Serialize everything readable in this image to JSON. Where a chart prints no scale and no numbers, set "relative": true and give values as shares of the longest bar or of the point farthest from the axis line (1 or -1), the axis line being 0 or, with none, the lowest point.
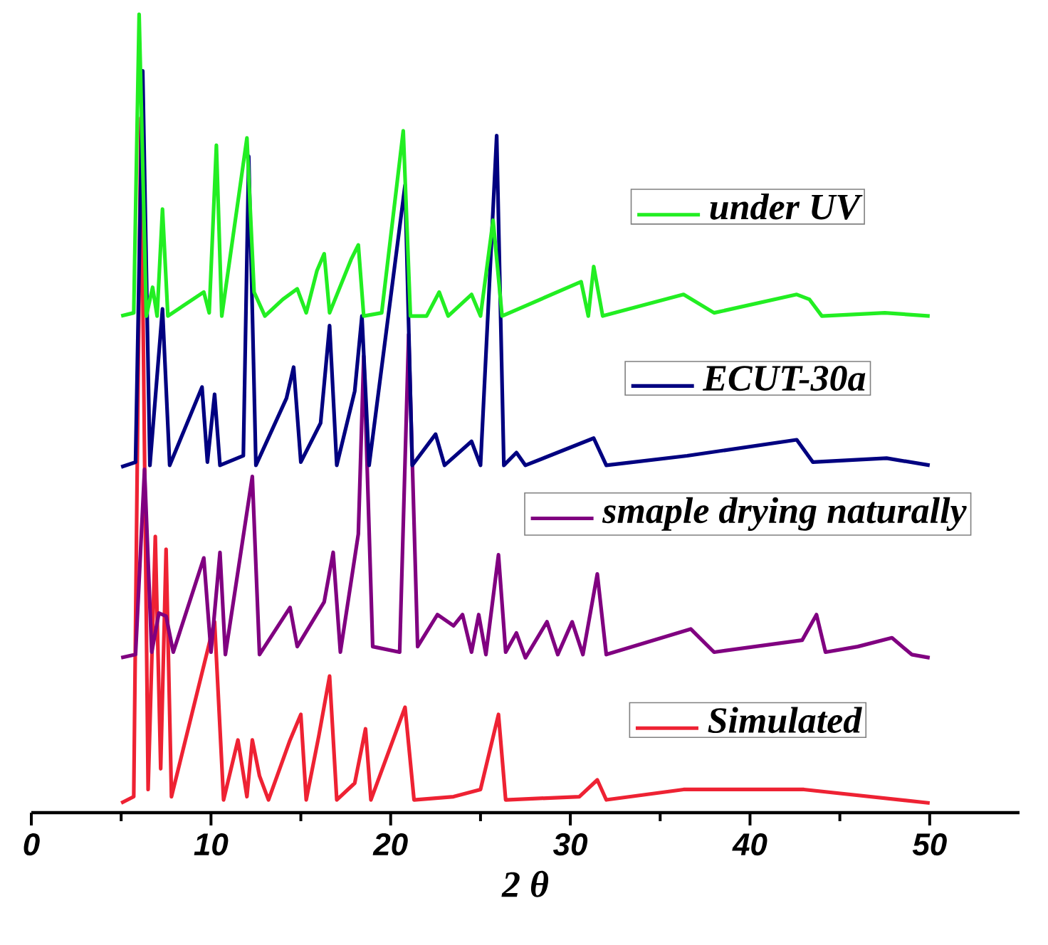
{
  "chart_data": {
    "type": "line",
    "relative": true,
    "xlabel": "2 *θ*",
    "xlim": [
      0,
      55
    ],
    "xticks": [
      0,
      10,
      20,
      30,
      40,
      50
    ],
    "legend": "right",
    "marker": "none",
    "line_style": "solid",
    "series": [
      {
        "name": "under UV",
        "color": "#22ee22",
        "x": [
          5,
          5.7,
          6.0,
          6.4,
          6.75,
          7.0,
          7.3,
          7.6,
          9.6,
          9.9,
          10.3,
          10.6,
          12.0,
          12.4,
          13,
          14.0,
          14.8,
          15.3,
          15.9,
          16.3,
          16.6,
          17.8,
          18.2,
          18.5,
          19.5,
          20.7,
          21.1,
          22.0,
          22.7,
          23.2,
          24.5,
          25,
          25.7,
          26.2,
          30.6,
          31.0,
          31.3,
          31.8,
          36.3,
          38,
          42.6,
          43.3,
          44,
          47.5,
          50
        ],
        "values": [
          0.622,
          0.626,
          1.0,
          0.622,
          0.658,
          0.622,
          0.756,
          0.622,
          0.652,
          0.626,
          0.836,
          0.622,
          0.845,
          0.652,
          0.622,
          0.643,
          0.656,
          0.626,
          0.679,
          0.7,
          0.626,
          0.693,
          0.711,
          0.622,
          0.626,
          0.854,
          0.622,
          0.622,
          0.652,
          0.622,
          0.649,
          0.622,
          0.742,
          0.622,
          0.665,
          0.622,
          0.684,
          0.622,
          0.649,
          0.626,
          0.649,
          0.643,
          0.622,
          0.626,
          0.622
        ]
      },
      {
        "name": "ECUT-30a",
        "color": "#000080",
        "x": [
          5,
          5.8,
          6.2,
          6.6,
          7.3,
          7.7,
          9.5,
          9.8,
          10.2,
          10.5,
          11.8,
          12.1,
          12.5,
          14.2,
          14.6,
          15.0,
          16.1,
          16.6,
          17.0,
          18.0,
          18.4,
          18.8,
          20.8,
          21.2,
          22.5,
          23,
          24.5,
          25,
          25.9,
          26.3,
          27.0,
          27.5,
          31.3,
          32,
          36.5,
          42.6,
          43.5,
          47.6,
          50
        ],
        "values": [
          0.433,
          0.439,
          0.929,
          0.435,
          0.631,
          0.435,
          0.533,
          0.439,
          0.524,
          0.435,
          0.447,
          0.822,
          0.435,
          0.519,
          0.558,
          0.439,
          0.488,
          0.61,
          0.435,
          0.528,
          0.622,
          0.435,
          0.786,
          0.435,
          0.474,
          0.435,
          0.465,
          0.435,
          0.848,
          0.435,
          0.451,
          0.435,
          0.469,
          0.435,
          0.447,
          0.467,
          0.439,
          0.444,
          0.435
        ]
      },
      {
        "name": "smaple drying naturally",
        "color": "#800080",
        "x": [
          5,
          5.8,
          6.3,
          6.7,
          7.1,
          7.5,
          7.9,
          9.6,
          10.0,
          10.5,
          10.8,
          12.3,
          12.7,
          14.4,
          14.8,
          16.3,
          16.8,
          17.2,
          18.2,
          18.5,
          19.0,
          20.5,
          21.0,
          21.5,
          22.6,
          23.5,
          24.0,
          24.5,
          24.9,
          25.3,
          26.0,
          26.4,
          27,
          27.5,
          28.7,
          29.3,
          30.1,
          30.7,
          31.5,
          32,
          36.7,
          38,
          42.9,
          43.7,
          44.2,
          46.0,
          47.9,
          49,
          50
        ],
        "values": [
          0.194,
          0.198,
          0.43,
          0.201,
          0.25,
          0.246,
          0.201,
          0.319,
          0.201,
          0.326,
          0.198,
          0.421,
          0.198,
          0.257,
          0.208,
          0.264,
          0.326,
          0.201,
          0.349,
          0.572,
          0.208,
          0.201,
          0.599,
          0.208,
          0.248,
          0.234,
          0.248,
          0.201,
          0.248,
          0.198,
          0.323,
          0.201,
          0.225,
          0.194,
          0.239,
          0.198,
          0.239,
          0.198,
          0.299,
          0.198,
          0.23,
          0.201,
          0.216,
          0.248,
          0.201,
          0.208,
          0.219,
          0.198,
          0.194
        ]
      },
      {
        "name": "Simulated",
        "color": "#ee2233",
        "x": [
          5,
          5.7,
          6.1,
          6.5,
          6.9,
          7.2,
          7.5,
          7.8,
          10.2,
          10.7,
          11.5,
          12.0,
          12.3,
          12.7,
          13.2,
          14.4,
          15.0,
          15.3,
          16.0,
          16.6,
          17.0,
          18.0,
          18.6,
          18.9,
          20.8,
          21.3,
          23.5,
          25,
          26.0,
          26.4,
          30.5,
          31.5,
          32,
          36.3,
          43.0,
          50
        ],
        "values": [
          0.012,
          0.02,
          0.87,
          0.029,
          0.346,
          0.055,
          0.33,
          0.02,
          0.239,
          0.016,
          0.091,
          0.02,
          0.091,
          0.046,
          0.016,
          0.091,
          0.123,
          0.016,
          0.096,
          0.171,
          0.016,
          0.037,
          0.105,
          0.016,
          0.132,
          0.016,
          0.02,
          0.029,
          0.123,
          0.016,
          0.02,
          0.041,
          0.016,
          0.029,
          0.029,
          0.012
        ]
      }
    ]
  }
}
